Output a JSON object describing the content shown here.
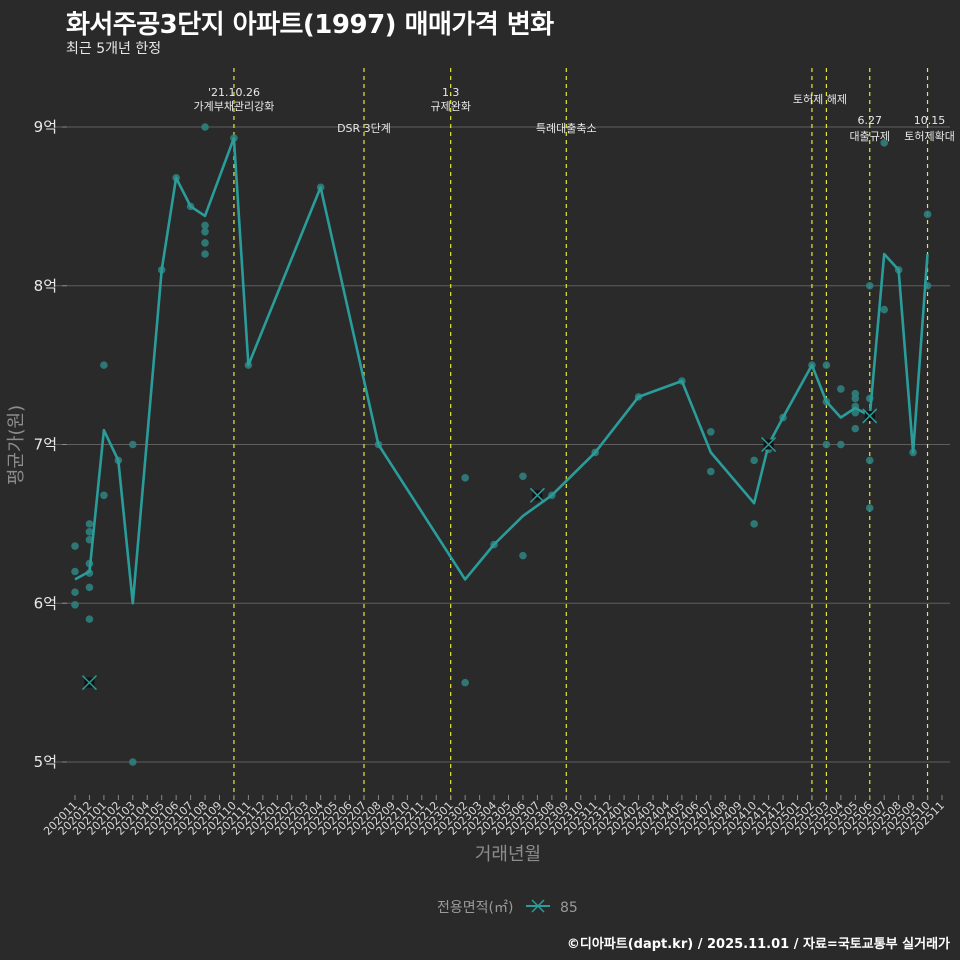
{
  "header": {
    "title": "화서주공3단지 아파트(1997) 매매가격 변화",
    "subtitle": "최근 5개년 한정"
  },
  "footer": {
    "caption": "©디아파트(dapt.kr) / 2025.11.01 / 자료=국토교통부 실거래가"
  },
  "legend": {
    "title": "전용면적(㎡)",
    "items": [
      {
        "label": "85",
        "color": "#2a9d9a",
        "icon": "x-line-icon"
      }
    ]
  },
  "colors": {
    "background": "#2a2a2b",
    "line": "#2a9d9a",
    "point": "#2f7f7d",
    "grid": "#5e5e5e",
    "vline": "#e8e83a"
  },
  "chart_data": {
    "type": "line",
    "title": "화서주공3단지 아파트(1997) 매매가격 변화",
    "subtitle": "최근 5개년 한정",
    "xlabel": "거래년월",
    "ylabel": "평균가(원)",
    "ylim": [
      4.8,
      9.4
    ],
    "yticks": [
      5,
      6,
      7,
      8,
      9
    ],
    "ytick_labels": [
      "5억",
      "6억",
      "7억",
      "8억",
      "9억"
    ],
    "grid": true,
    "legend_position": "bottom",
    "categories": [
      "202011",
      "202012",
      "202101",
      "202102",
      "202103",
      "202104",
      "202105",
      "202106",
      "202107",
      "202108",
      "202109",
      "202110",
      "202111",
      "202112",
      "202201",
      "202202",
      "202203",
      "202204",
      "202205",
      "202206",
      "202207",
      "202208",
      "202209",
      "202210",
      "202211",
      "202212",
      "202301",
      "202302",
      "202303",
      "202304",
      "202305",
      "202306",
      "202307",
      "202308",
      "202309",
      "202310",
      "202311",
      "202312",
      "202401",
      "202402",
      "202403",
      "202404",
      "202405",
      "202406",
      "202407",
      "202408",
      "202409",
      "202410",
      "202411",
      "202412",
      "202501",
      "202502",
      "202503",
      "202504",
      "202505",
      "202506",
      "202507",
      "202508",
      "202509",
      "202510",
      "202511"
    ],
    "series": [
      {
        "name": "85",
        "kind": "monthly_average_line",
        "points": [
          {
            "x": "202011",
            "y": 6.15
          },
          {
            "x": "202012",
            "y": 6.2
          },
          {
            "x": "202101",
            "y": 7.09
          },
          {
            "x": "202102",
            "y": 6.9
          },
          {
            "x": "202103",
            "y": 6.0
          },
          {
            "x": "202105",
            "y": 8.1
          },
          {
            "x": "202106",
            "y": 8.68
          },
          {
            "x": "202107",
            "y": 8.5
          },
          {
            "x": "202108",
            "y": 8.44
          },
          {
            "x": "202110",
            "y": 8.93
          },
          {
            "x": "202111",
            "y": 7.5
          },
          {
            "x": "202204",
            "y": 8.62
          },
          {
            "x": "202208",
            "y": 7.0
          },
          {
            "x": "202302",
            "y": 6.15
          },
          {
            "x": "202304",
            "y": 6.37
          },
          {
            "x": "202306",
            "y": 6.55
          },
          {
            "x": "202308",
            "y": 6.68
          },
          {
            "x": "202311",
            "y": 6.95
          },
          {
            "x": "202402",
            "y": 7.3
          },
          {
            "x": "202405",
            "y": 7.4
          },
          {
            "x": "202407",
            "y": 6.95
          },
          {
            "x": "202410",
            "y": 6.63
          },
          {
            "x": "202411",
            "y": 7.0
          },
          {
            "x": "202412",
            "y": 7.17
          },
          {
            "x": "202502",
            "y": 7.5
          },
          {
            "x": "202503",
            "y": 7.27
          },
          {
            "x": "202504",
            "y": 7.17
          },
          {
            "x": "202505",
            "y": 7.23
          },
          {
            "x": "202506",
            "y": 7.18
          },
          {
            "x": "202507",
            "y": 8.2
          },
          {
            "x": "202508",
            "y": 8.1
          },
          {
            "x": "202509",
            "y": 6.95
          },
          {
            "x": "202510",
            "y": 8.2
          }
        ]
      },
      {
        "name": "85 individual trades",
        "kind": "scatter",
        "points": [
          {
            "x": "202011",
            "y": 6.36
          },
          {
            "x": "202011",
            "y": 6.2
          },
          {
            "x": "202011",
            "y": 6.07
          },
          {
            "x": "202011",
            "y": 5.99
          },
          {
            "x": "202012",
            "y": 6.5
          },
          {
            "x": "202012",
            "y": 6.45
          },
          {
            "x": "202012",
            "y": 6.4
          },
          {
            "x": "202012",
            "y": 6.25
          },
          {
            "x": "202012",
            "y": 6.19
          },
          {
            "x": "202012",
            "y": 6.1
          },
          {
            "x": "202012",
            "y": 5.9
          },
          {
            "x": "202101",
            "y": 7.5
          },
          {
            "x": "202101",
            "y": 6.68
          },
          {
            "x": "202102",
            "y": 6.9
          },
          {
            "x": "202103",
            "y": 7.0
          },
          {
            "x": "202103",
            "y": 5.0
          },
          {
            "x": "202105",
            "y": 8.1
          },
          {
            "x": "202106",
            "y": 8.68
          },
          {
            "x": "202107",
            "y": 8.5
          },
          {
            "x": "202108",
            "y": 9.0
          },
          {
            "x": "202108",
            "y": 8.38
          },
          {
            "x": "202108",
            "y": 8.34
          },
          {
            "x": "202108",
            "y": 8.27
          },
          {
            "x": "202108",
            "y": 8.2
          },
          {
            "x": "202110",
            "y": 8.93
          },
          {
            "x": "202111",
            "y": 7.5
          },
          {
            "x": "202204",
            "y": 8.62
          },
          {
            "x": "202208",
            "y": 7.0
          },
          {
            "x": "202302",
            "y": 6.79
          },
          {
            "x": "202302",
            "y": 5.5
          },
          {
            "x": "202304",
            "y": 6.37
          },
          {
            "x": "202306",
            "y": 6.8
          },
          {
            "x": "202306",
            "y": 6.3
          },
          {
            "x": "202308",
            "y": 6.68
          },
          {
            "x": "202311",
            "y": 6.95
          },
          {
            "x": "202402",
            "y": 7.3
          },
          {
            "x": "202405",
            "y": 7.4
          },
          {
            "x": "202407",
            "y": 7.08
          },
          {
            "x": "202407",
            "y": 6.83
          },
          {
            "x": "202410",
            "y": 6.9
          },
          {
            "x": "202410",
            "y": 6.5
          },
          {
            "x": "202411",
            "y": 6.97
          },
          {
            "x": "202412",
            "y": 7.17
          },
          {
            "x": "202502",
            "y": 7.5
          },
          {
            "x": "202503",
            "y": 7.5
          },
          {
            "x": "202503",
            "y": 7.27
          },
          {
            "x": "202503",
            "y": 7.0
          },
          {
            "x": "202504",
            "y": 7.35
          },
          {
            "x": "202504",
            "y": 7.0
          },
          {
            "x": "202505",
            "y": 7.32
          },
          {
            "x": "202505",
            "y": 7.29
          },
          {
            "x": "202505",
            "y": 7.24
          },
          {
            "x": "202505",
            "y": 7.2
          },
          {
            "x": "202505",
            "y": 7.1
          },
          {
            "x": "202506",
            "y": 8.0
          },
          {
            "x": "202506",
            "y": 7.29
          },
          {
            "x": "202506",
            "y": 6.9
          },
          {
            "x": "202506",
            "y": 6.6
          },
          {
            "x": "202507",
            "y": 7.85
          },
          {
            "x": "202507",
            "y": 8.9
          },
          {
            "x": "202508",
            "y": 8.1
          },
          {
            "x": "202509",
            "y": 6.95
          },
          {
            "x": "202510",
            "y": 8.45
          },
          {
            "x": "202510",
            "y": 8.0
          }
        ]
      },
      {
        "name": "85 highlighted (x markers)",
        "kind": "x_marker",
        "points": [
          {
            "x": "202012",
            "y": 5.5
          },
          {
            "x": "202307",
            "y": 6.68
          },
          {
            "x": "202411",
            "y": 7.0
          },
          {
            "x": "202506",
            "y": 7.18
          }
        ]
      }
    ],
    "annotations": [
      {
        "x": "202110",
        "lines": [
          "'21.10.26",
          "가계부채관리강화"
        ]
      },
      {
        "x": "202207",
        "lines": [
          "DSR 3단계"
        ]
      },
      {
        "x": "202301",
        "lines": [
          "1.3",
          "규제완화"
        ]
      },
      {
        "x": "202309",
        "lines": [
          "특례대출축소"
        ]
      },
      {
        "x": "202502",
        "lines": [
          "토허제 해제"
        ]
      },
      {
        "x": "202503",
        "lines": []
      },
      {
        "x": "202506",
        "lines": [
          "6.27",
          "대출규제"
        ]
      },
      {
        "x": "202510",
        "lines": [
          "10.15",
          "토허제확대"
        ]
      }
    ]
  }
}
